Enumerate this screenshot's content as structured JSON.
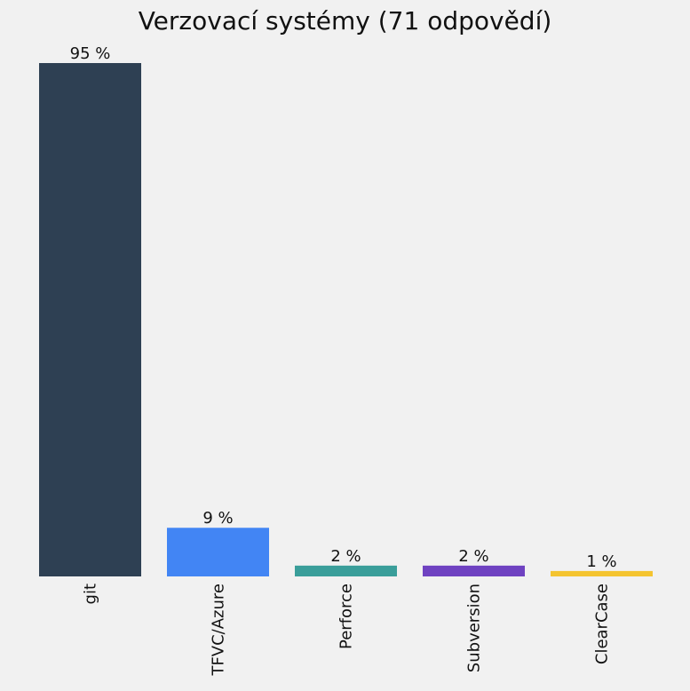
{
  "chart_data": {
    "type": "bar",
    "title": "Verzovací systémy (71 odpovědí)",
    "categories": [
      "git",
      "TFVC/Azure",
      "Perforce",
      "Subversion",
      "ClearCase"
    ],
    "values": [
      95,
      9,
      2,
      2,
      1
    ],
    "value_labels": [
      "95 %",
      "9 %",
      "2 %",
      "2 %",
      "1 %"
    ],
    "unit": "%",
    "colors": [
      "#2e4053",
      "#4285f4",
      "#3a9e9a",
      "#6f42c1",
      "#f4c430"
    ],
    "ylim": [
      0,
      95
    ],
    "grid": false,
    "legend": "none"
  }
}
